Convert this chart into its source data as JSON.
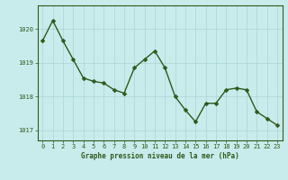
{
  "x": [
    0,
    1,
    2,
    3,
    4,
    5,
    6,
    7,
    8,
    9,
    10,
    11,
    12,
    13,
    14,
    15,
    16,
    17,
    18,
    19,
    20,
    21,
    22,
    23
  ],
  "y": [
    1019.65,
    1020.25,
    1019.65,
    1019.1,
    1018.55,
    1018.45,
    1018.4,
    1018.2,
    1018.1,
    1018.85,
    1019.1,
    1019.35,
    1018.85,
    1018.0,
    1017.6,
    1017.25,
    1017.8,
    1017.8,
    1018.2,
    1018.25,
    1018.2,
    1017.55,
    1017.35,
    1017.15
  ],
  "line_color": "#2d5a1b",
  "marker_color": "#2d5a1b",
  "bg_color": "#c8ecec",
  "grid_color": "#aad4d4",
  "xlabel": "Graphe pression niveau de la mer (hPa)",
  "xlabel_color": "#2d5a1b",
  "tick_color": "#2d5a1b",
  "ylim": [
    1016.7,
    1020.7
  ],
  "yticks": [
    1017,
    1018,
    1019,
    1020
  ],
  "xlim": [
    -0.5,
    23.5
  ],
  "xticks": [
    0,
    1,
    2,
    3,
    4,
    5,
    6,
    7,
    8,
    9,
    10,
    11,
    12,
    13,
    14,
    15,
    16,
    17,
    18,
    19,
    20,
    21,
    22,
    23
  ],
  "line_width": 1.0,
  "marker_size": 2.5,
  "border_color": "#2d5a1b",
  "tick_fontsize": 5.0,
  "xlabel_fontsize": 5.5,
  "ylabel_fontsize": 5.0
}
